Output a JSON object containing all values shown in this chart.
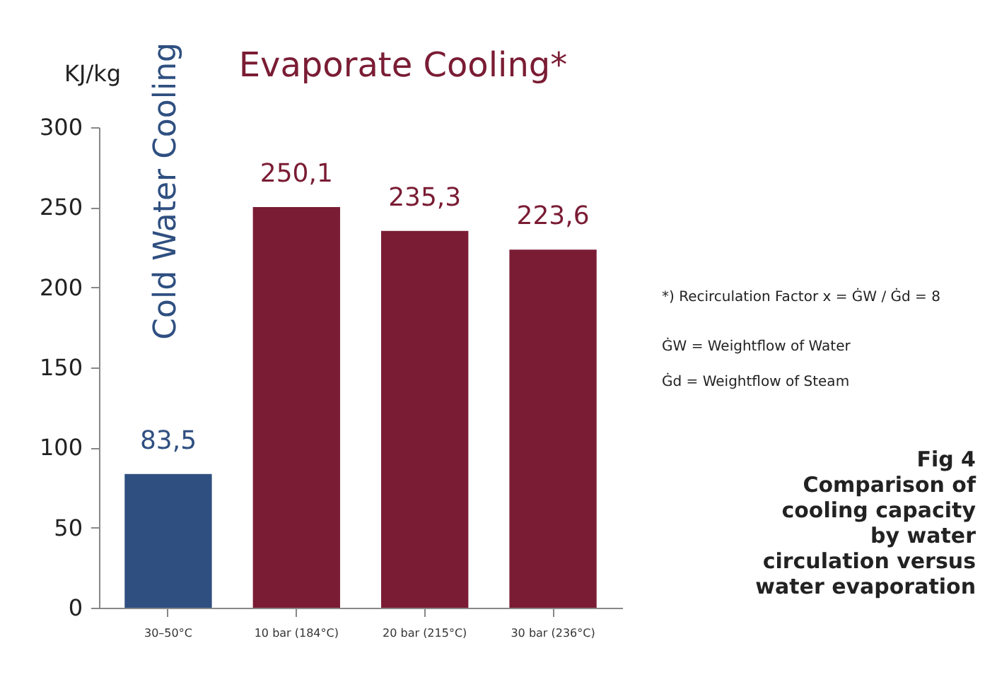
{
  "chart_data": {
    "type": "bar",
    "ylabel": "KJ/kg",
    "categories": [
      "30–50°C",
      "10 bar (184°C)",
      "20 bar (215°C)",
      "30 bar (236°C)"
    ],
    "values": [
      83.5,
      250.1,
      235.3,
      223.6
    ],
    "value_labels": [
      "83,5",
      "250,1",
      "235,3",
      "223,6"
    ],
    "colors": [
      "#2f4f80",
      "#7a1c34",
      "#7a1c34",
      "#7a1c34"
    ],
    "ylim": [
      0,
      300
    ],
    "yticks": [
      0,
      50,
      100,
      150,
      200,
      250,
      300
    ],
    "grid": false,
    "annotations": [
      "Cold Water Cooling",
      "Evaporate Cooling*",
      "*) Recirculation Factor x = ĠW / Ġd = 8",
      "ĠW = Weightflow of Water",
      "Ġd = Weightflow of Steam",
      "Fig 4\nComparison of\ncooling capacity\nby water\ncirculation versus\nwater evaporation"
    ]
  }
}
